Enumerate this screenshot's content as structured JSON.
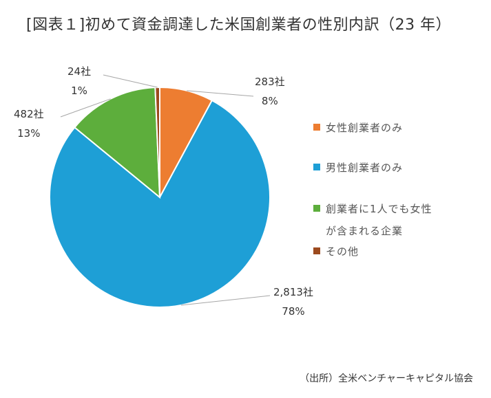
{
  "chart_data": {
    "type": "pie",
    "title": "[図表１]初めて資金調達した米国創業者の性別内訳（23 年）",
    "slices": [
      {
        "name": "女性創業者のみ",
        "value": 283,
        "count_label": "283社",
        "percent_label": "8%",
        "color": "#ED7D31"
      },
      {
        "name": "男性創業者のみ",
        "value": 2813,
        "count_label": "2,813社",
        "percent_label": "78%",
        "color": "#1E9FD6"
      },
      {
        "name": "創業者に1人でも女性\nが含まれる企業",
        "value": 482,
        "count_label": "482社",
        "percent_label": "13%",
        "color": "#5DAE3C"
      },
      {
        "name": "その他",
        "value": 24,
        "count_label": "24社",
        "percent_label": "1%",
        "color": "#9C4A1E"
      }
    ],
    "legend_position": "right",
    "source": "（出所）全米ベンチャーキャピタル協会"
  }
}
